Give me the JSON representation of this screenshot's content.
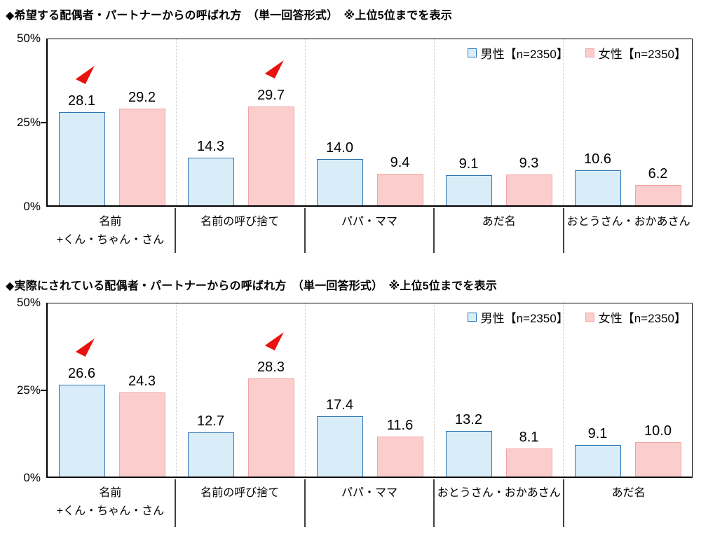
{
  "colors": {
    "male_fill": "#D9EDF9",
    "male_border": "#2E75B6",
    "female_fill": "#FBCDCD",
    "female_border": "#F2A5A5",
    "arrow_red": "#E8130E"
  },
  "chart_data": [
    {
      "type": "bar",
      "title": "◆希望する配偶者・パートナーからの呼ばれ方　（単一回答形式）　※上位5位までを表示",
      "y_ticks": [
        "50%",
        "25%",
        "0%"
      ],
      "ylim": [
        0,
        50
      ],
      "grid": "dotted-vertical-between-groups",
      "legend_position": "top-right-inside",
      "categories": [
        "名前\n+くん・ちゃん・さん",
        "名前の呼び捨て",
        "パパ・ママ",
        "あだ名",
        "おとうさん・おかあさん"
      ],
      "series": [
        {
          "name": "男性【n=2350】",
          "values": [
            28.1,
            14.3,
            14.0,
            9.1,
            10.6
          ]
        },
        {
          "name": "女性【n=2350】",
          "values": [
            29.2,
            29.7,
            9.4,
            9.3,
            6.2
          ]
        }
      ],
      "annotations": [
        {
          "type": "red-arrow",
          "category_index": 0,
          "series_index": 0,
          "on_value": 28.1
        },
        {
          "type": "red-arrow",
          "category_index": 1,
          "series_index": 1,
          "on_value": 29.7
        }
      ]
    },
    {
      "type": "bar",
      "title": "◆実際にされている配偶者・パートナーからの呼ばれ方　（単一回答形式）　※上位5位までを表示",
      "y_ticks": [
        "50%",
        "25%",
        "0%"
      ],
      "ylim": [
        0,
        50
      ],
      "grid": "dotted-vertical-between-groups",
      "legend_position": "top-right-inside",
      "categories": [
        "名前\n+くん・ちゃん・さん",
        "名前の呼び捨て",
        "パパ・ママ",
        "おとうさん・おかあさん",
        "あだ名"
      ],
      "series": [
        {
          "name": "男性【n=2350】",
          "values": [
            26.6,
            12.7,
            17.4,
            13.2,
            9.1
          ]
        },
        {
          "name": "女性【n=2350】",
          "values": [
            24.3,
            28.3,
            11.6,
            8.1,
            10.0
          ]
        }
      ],
      "annotations": [
        {
          "type": "red-arrow",
          "category_index": 0,
          "series_index": 0,
          "on_value": 26.6
        },
        {
          "type": "red-arrow",
          "category_index": 1,
          "series_index": 1,
          "on_value": 28.3
        }
      ]
    }
  ]
}
